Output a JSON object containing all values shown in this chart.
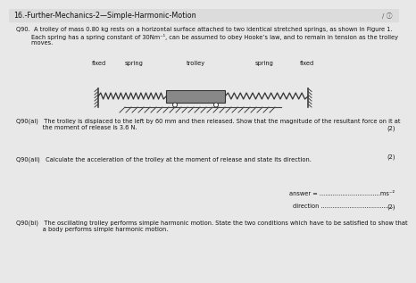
{
  "title": "16.-Further-Mechanics-2—Simple-Harmonic-Motion",
  "bg_color": "#e8e8e8",
  "text_color": "#111111",
  "intro_line1": "Q90.  A trolley of mass 0.80 kg rests on a horizontal surface attached to two identical stretched springs, as shown in Figure 1.",
  "intro_line2": "        Each spring has a spring constant of 30Nm⁻¹, can be assumed to obey Hooke’s law, and to remain in tension as the trolley",
  "intro_line3": "        moves.",
  "diag_label_fixed1": "fixed",
  "diag_label_spring1": "spring",
  "diag_label_trolley": "trolley",
  "diag_label_spring2": "spring",
  "diag_label_fixed2": "fixed",
  "q90ai_line1": "Q90(ai)   The trolley is displaced to the left by 60 mm and then released. Show that the magnitude of the resultant force on it at",
  "q90ai_line2": "              the moment of release is 3.6 N.",
  "marks2": "(2)",
  "q90aii_line": "Q90(aii)   Calculate the acceleration of the trolley at the moment of release and state its direction.",
  "answer_label": "answer = ................................ms⁻²",
  "direction_label": "direction .......................................",
  "q90bi_line1": "Q90(bi)   The oscillating trolley performs simple harmonic motion. State the two conditions which have to be satisfied to show that",
  "q90bi_line2": "              a body performs simple harmonic motion.",
  "title_bg": "#dcdcdc",
  "wall_color": "#444444",
  "spring_color": "#333333",
  "trolley_color": "#888888",
  "ground_color": "#444444"
}
